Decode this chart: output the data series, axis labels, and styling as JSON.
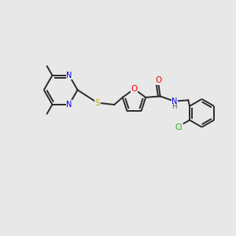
{
  "background_color": "#e8e8e8",
  "bond_color": "#2a2a2a",
  "atom_colors": {
    "N": "#0000ee",
    "O": "#ee0000",
    "S": "#bbaa00",
    "Cl": "#22aa22",
    "H": "#555555",
    "C": "#2a2a2a"
  },
  "figsize": [
    3.0,
    3.0
  ],
  "dpi": 100
}
